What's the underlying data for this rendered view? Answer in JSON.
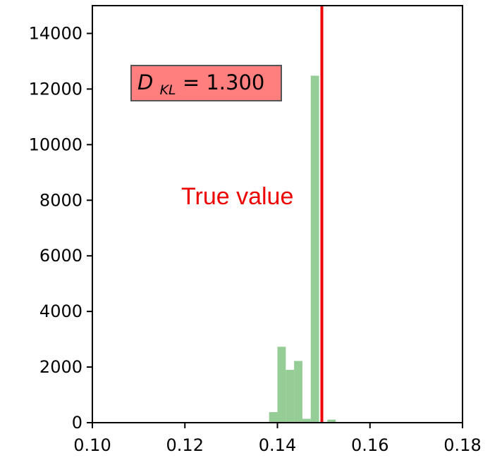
{
  "chart_data": {
    "type": "bar",
    "subtype": "histogram",
    "title": "",
    "xlabel": "",
    "ylabel": "",
    "xlim": [
      0.1,
      0.18
    ],
    "ylim": [
      0,
      15000
    ],
    "xticks": [
      "0.10",
      "0.12",
      "0.14",
      "0.16",
      "0.18"
    ],
    "yticks": [
      "0",
      "2000",
      "4000",
      "6000",
      "8000",
      "10000",
      "12000",
      "14000"
    ],
    "bin_width": 0.0018,
    "bins": [
      {
        "x0": 0.131,
        "value": 20
      },
      {
        "x0": 0.1382,
        "value": 380
      },
      {
        "x0": 0.14,
        "value": 2730
      },
      {
        "x0": 0.1418,
        "value": 1900
      },
      {
        "x0": 0.1436,
        "value": 2220
      },
      {
        "x0": 0.1454,
        "value": 140
      },
      {
        "x0": 0.1472,
        "value": 12480
      },
      {
        "x0": 0.1508,
        "value": 110
      }
    ],
    "bar_color": "#96cd96",
    "true_value": {
      "x": 0.1496,
      "label": "True value",
      "color": "#ee0000"
    },
    "annotation": {
      "text_symbol": "D",
      "text_subscript": "KL",
      "text_value": " = 1.300",
      "box_color": "#ff7f7f"
    },
    "grid": false,
    "legend": "none"
  }
}
